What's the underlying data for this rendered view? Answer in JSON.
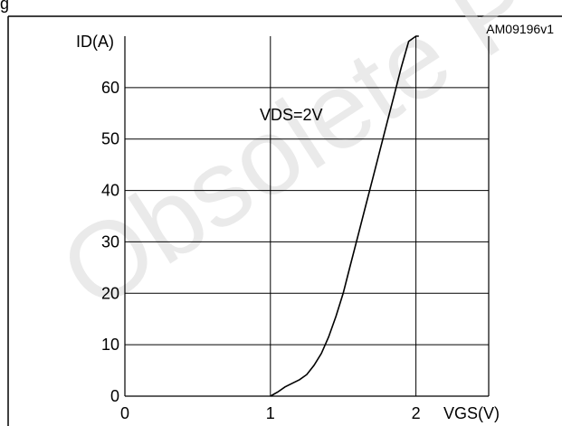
{
  "heading_fragment": "g",
  "figure_code": "AM09196v1",
  "watermark": "Obsolete P",
  "chart_data": {
    "type": "line",
    "xlabel": "VGS(V)",
    "ylabel": "ID(A)",
    "annotation": "VDS=2V",
    "xlim": [
      0,
      2.5
    ],
    "ylim": [
      0,
      70
    ],
    "x_ticks": [
      0,
      1,
      2
    ],
    "y_ticks": [
      0,
      10,
      20,
      30,
      40,
      50,
      60
    ],
    "grid": true,
    "series": [
      {
        "x": [
          1.0,
          1.05,
          1.1,
          1.15,
          1.2,
          1.25,
          1.3,
          1.35,
          1.4,
          1.45,
          1.5,
          1.55,
          1.6,
          1.65,
          1.7,
          1.75,
          1.8,
          1.85,
          1.9,
          1.95,
          2.0,
          2.02
        ],
        "y": [
          0,
          0.8,
          1.8,
          2.5,
          3.2,
          4.2,
          6,
          8.3,
          11.5,
          15.5,
          20,
          25.5,
          31,
          36.5,
          42,
          47.5,
          53,
          58.5,
          64,
          69,
          73.5,
          75
        ]
      }
    ]
  }
}
